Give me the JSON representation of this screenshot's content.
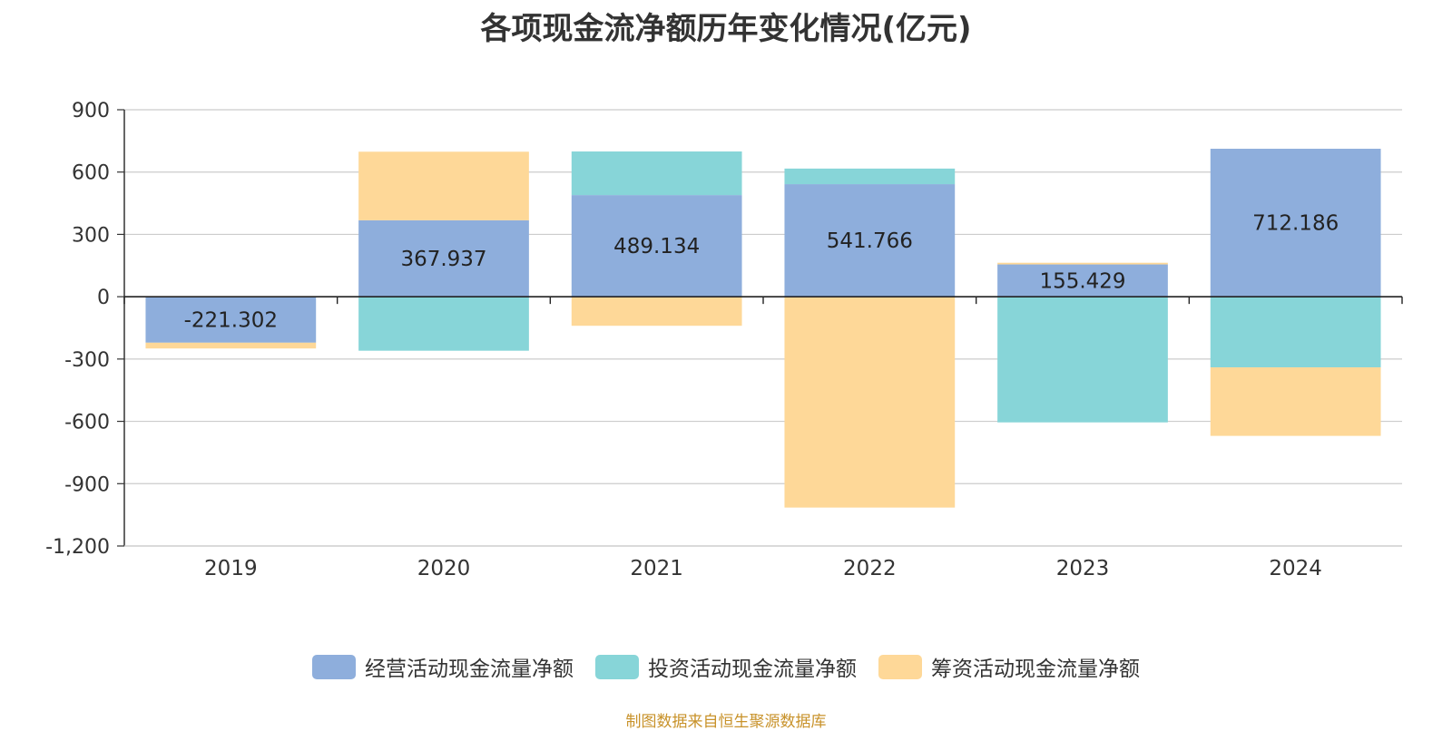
{
  "chart_data": {
    "type": "bar",
    "stacked": true,
    "title": "各项现金流净额历年变化情况(亿元)",
    "categories": [
      "2019",
      "2020",
      "2021",
      "2022",
      "2023",
      "2024"
    ],
    "ylim": [
      -1200,
      900
    ],
    "yticks": [
      900,
      600,
      300,
      0,
      -300,
      -600,
      -900,
      -1200
    ],
    "ytick_labels": [
      "900",
      "600",
      "300",
      "0",
      "-300",
      "-600",
      "-900",
      "-1,200"
    ],
    "grid": true,
    "legend_position": "bottom",
    "series": [
      {
        "name": "经营活动现金流量净额",
        "color": "#8eaedc",
        "values": [
          -221.302,
          367.937,
          489.134,
          541.766,
          155.429,
          712.186
        ],
        "data_labels": [
          "-221.302",
          "367.937",
          "489.134",
          "541.766",
          "155.429",
          "712.186"
        ]
      },
      {
        "name": "投资活动现金流量净额",
        "color": "#87d5d8",
        "values": [
          0,
          -260,
          210,
          75,
          -605,
          -340
        ]
      },
      {
        "name": "筹资活动现金流量净额",
        "color": "#fed898",
        "values": [
          -28,
          330,
          -140,
          -1015,
          8,
          -330
        ]
      }
    ]
  },
  "footer": {
    "source": "制图数据来自恒生聚源数据库"
  }
}
